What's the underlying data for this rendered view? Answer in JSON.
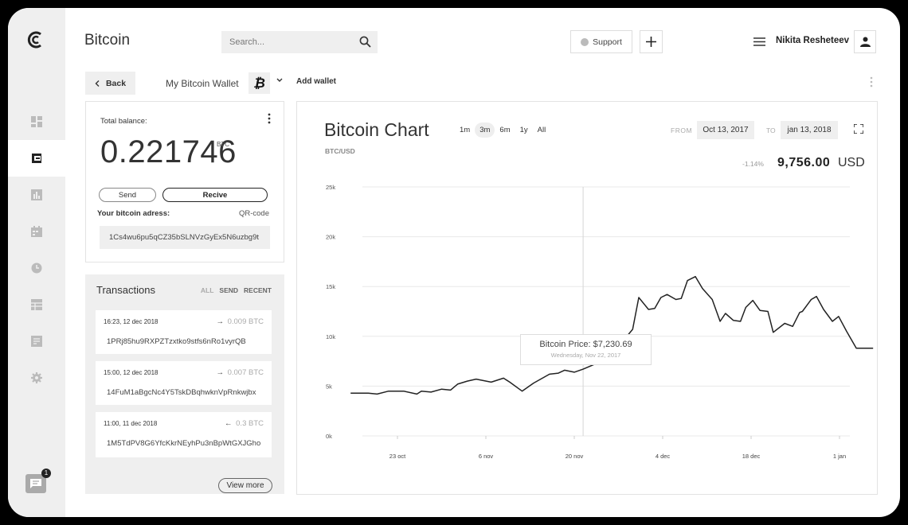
{
  "header": {
    "app_title": "Bitcoin",
    "search_placeholder": "Search...",
    "support_label": "Support",
    "user_name": "Nikita Resheteev"
  },
  "nav": {
    "back_label": "Back",
    "wallet_name": "My Bitcoin Wallet",
    "wallet_symbol": "₿",
    "add_wallet_label": "Add wallet"
  },
  "sidebar": {
    "items": [
      {
        "icon": "dashboard-icon",
        "active": false
      },
      {
        "icon": "wallet-icon",
        "active": true
      },
      {
        "icon": "bar-chart-icon",
        "active": false
      },
      {
        "icon": "calendar-icon",
        "active": false
      },
      {
        "icon": "clock-icon",
        "active": false
      },
      {
        "icon": "table-icon",
        "active": false
      },
      {
        "icon": "document-icon",
        "active": false
      },
      {
        "icon": "settings-icon",
        "active": false
      }
    ],
    "chat_badge": "1"
  },
  "balance": {
    "label": "Total balance:",
    "value": "0.221746",
    "unit": "BTC",
    "send_label": "Send",
    "receive_label": "Recive",
    "address_label": "Your bitcoin adress:",
    "qr_label": "QR-code",
    "address": "1Cs4wu6pu5qCZ35bSLNVzGyEx5N6uzbg9t"
  },
  "transactions": {
    "title": "Transactions",
    "filters": [
      "ALL",
      "SEND",
      "RECENT"
    ],
    "items": [
      {
        "time": "16:23, 12 dec 2018",
        "arrow": "→",
        "amount": "0.009 BTC",
        "hash": "1PRj85hu9RXPZTzxtko9stfs6nRo1vyrQB"
      },
      {
        "time": "15:00, 12 dec 2018",
        "arrow": "→",
        "amount": "0.007 BTC",
        "hash": "14FuM1aBgcNc4Y5TskDBqhwknVpRnkwjbx"
      },
      {
        "time": "11:00, 11 dec 2018",
        "arrow": "←",
        "amount": "0.3 BTC",
        "hash": "1M5TdPV8G6YfcKkrNEyhPu3nBpWtGXJGho"
      }
    ],
    "view_more_label": "View more"
  },
  "chart_panel": {
    "title": "Bitcoin Chart",
    "ranges": [
      "1m",
      "3m",
      "6m",
      "1y",
      "All"
    ],
    "active_range": "3m",
    "from_label": "FROM",
    "from_date": "Oct 13, 2017",
    "to_label": "TO",
    "to_date": "jan 13, 2018",
    "pair": "BTC/USD",
    "change": "-1.14%",
    "price": "9,756.00",
    "currency": "USD",
    "tooltip_price": "Bitcoin Price: $7,230.69",
    "tooltip_date": "Wednesday, Nov 22, 2017"
  },
  "chart_data": {
    "type": "line",
    "x_ticks": [
      "23 oct",
      "6 nov",
      "20 nov",
      "4 dec",
      "18 dec",
      "1 jan"
    ],
    "y_ticks": [
      "25k",
      "20k",
      "15k",
      "10k",
      "5k",
      "0k"
    ],
    "ylim": [
      0,
      25000
    ],
    "grid": true,
    "cursor_x": 2.1,
    "series": [
      {
        "x": [
          -0.53,
          -0.33,
          -0.23,
          -0.1,
          0.07,
          0.22,
          0.27,
          0.38,
          0.5,
          0.6,
          0.68,
          0.79,
          0.89,
          1.06,
          1.2,
          1.27,
          1.41,
          1.54,
          1.72,
          1.82,
          1.89,
          2.0,
          2.1,
          2.23,
          2.29,
          2.36,
          2.66,
          2.73,
          2.84,
          2.91,
          2.98,
          3.05,
          3.15,
          3.21,
          3.28,
          3.37,
          3.45,
          3.56,
          3.65,
          3.71,
          3.8,
          3.88,
          3.94,
          4.02,
          4.1,
          4.19,
          4.25,
          4.38,
          4.47,
          4.55,
          4.58,
          4.68,
          4.74,
          4.82,
          4.92,
          4.99,
          5.08,
          5.19,
          5.29,
          5.38
        ],
        "y": [
          4300,
          4300,
          4200,
          4500,
          4500,
          4200,
          4500,
          4400,
          4700,
          4600,
          5200,
          5500,
          5700,
          5400,
          5800,
          5400,
          4500,
          5300,
          6200,
          6300,
          6600,
          6400,
          6700,
          7200,
          7800,
          7500,
          10700,
          13900,
          12700,
          12800,
          13900,
          14200,
          13700,
          13800,
          15600,
          16000,
          14800,
          13700,
          11500,
          12300,
          11600,
          11500,
          12900,
          13600,
          12600,
          12500,
          10400,
          11300,
          11000,
          12400,
          12500,
          13700,
          14000,
          12700,
          11500,
          12000,
          10500,
          8800,
          8800,
          8800
        ]
      }
    ]
  }
}
